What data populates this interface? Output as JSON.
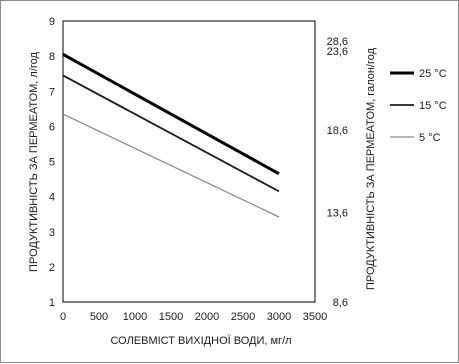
{
  "chart_data": {
    "type": "line",
    "title": "",
    "x": [
      0,
      3000
    ],
    "xlabel": "СОЛЕВМІСТ ВИХІДНОЇ ВОДИ, мг/л",
    "ylabel": "ПРОДУКТИВНІСТЬ ЗА ПЕРМЕАТОМ, л/год",
    "y2label": "ПРОДУКТИВНІСТЬ ЗА ПЕРМЕАТОМ, галон/год",
    "xlim": [
      0,
      3500
    ],
    "ylim": [
      1,
      9
    ],
    "x_ticks": [
      "0",
      "500",
      "1000",
      "1500",
      "2000",
      "2500",
      "3000",
      "3500"
    ],
    "y_ticks": [
      "1",
      "2",
      "3",
      "4",
      "5",
      "6",
      "7",
      "8",
      "9"
    ],
    "y2_ticks": [
      {
        "y": 1,
        "label": "8,6"
      },
      {
        "y": 3.55,
        "label": "13,6"
      },
      {
        "y": 5.9,
        "label": "18,6"
      },
      {
        "y": 8.15,
        "label": "23,6"
      },
      {
        "y": 10.35,
        "label": "28,6"
      }
    ],
    "grid": false,
    "legend_position": "right",
    "series": [
      {
        "name": "25 °C",
        "values": [
          8.05,
          4.65
        ],
        "color": "#000000",
        "width": 3
      },
      {
        "name": "15 °C",
        "values": [
          7.45,
          4.15
        ],
        "color": "#1a1a1a",
        "width": 1.8
      },
      {
        "name": "5 °C",
        "values": [
          6.35,
          3.42
        ],
        "color": "#8a8a8a",
        "width": 1.3
      }
    ]
  }
}
